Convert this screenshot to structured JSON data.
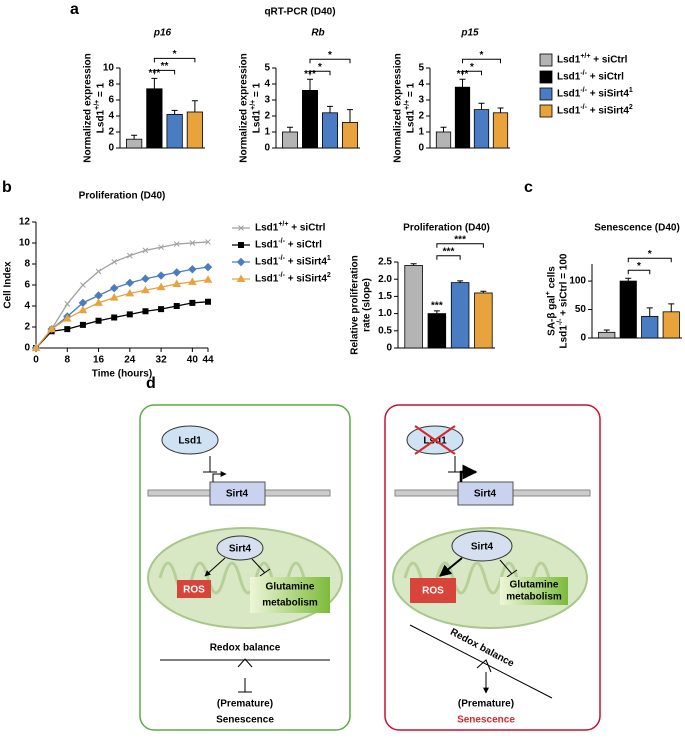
{
  "panel_labels": [
    "a",
    "b",
    "c",
    "d"
  ],
  "panel_a_title": "qRT-PCR (D40)",
  "chart_data": [
    {
      "type": "bar",
      "title": "p16",
      "title_italic": true,
      "ylabel": [
        "Normalized expression",
        "Lsd1+/+ = 1"
      ],
      "categories": [
        null,
        null,
        null,
        null
      ],
      "values": [
        1.1,
        7.4,
        4.2,
        4.5
      ],
      "errors": [
        0.5,
        1.3,
        0.5,
        1.4
      ],
      "colors": [
        "#b4b4b4",
        "#000000",
        "#4a7cc4",
        "#e8a33d"
      ],
      "legend": [
        "Lsd1+/+ + siCtrl",
        "Lsd1-/- + siCtrl",
        "Lsd1-/- + siSirt41",
        "Lsd1-/- + siSirt42"
      ],
      "ylim": [
        0,
        10
      ],
      "yticks": [
        0,
        2,
        4,
        6,
        8,
        10
      ],
      "annotations": [
        {
          "text": "***",
          "bars": [
            1
          ]
        },
        {
          "text": "**",
          "bars": [
            1,
            2
          ]
        },
        {
          "text": "*",
          "bars": [
            1,
            3
          ]
        }
      ]
    },
    {
      "type": "bar",
      "title": "Rb",
      "title_italic": true,
      "ylabel": [
        "Normalized expression",
        "Lsd1+/+ = 1"
      ],
      "categories": [
        null,
        null,
        null,
        null
      ],
      "values": [
        1.0,
        3.6,
        2.2,
        1.6
      ],
      "errors": [
        0.3,
        0.7,
        0.4,
        0.8
      ],
      "colors": [
        "#b4b4b4",
        "#000000",
        "#4a7cc4",
        "#e8a33d"
      ],
      "ylim": [
        0,
        5
      ],
      "yticks": [
        0,
        1,
        2,
        3,
        4,
        5
      ],
      "annotations": [
        {
          "text": "***",
          "bars": [
            1
          ]
        },
        {
          "text": "*",
          "bars": [
            1,
            2
          ]
        },
        {
          "text": "*",
          "bars": [
            1,
            3
          ]
        }
      ]
    },
    {
      "type": "bar",
      "title": "p15",
      "title_italic": true,
      "ylabel": [
        "Normalized expression",
        "Lsd1+/+ = 1"
      ],
      "categories": [
        null,
        null,
        null,
        null
      ],
      "values": [
        1.0,
        3.8,
        2.4,
        2.2
      ],
      "errors": [
        0.3,
        0.5,
        0.4,
        0.3
      ],
      "colors": [
        "#b4b4b4",
        "#000000",
        "#4a7cc4",
        "#e8a33d"
      ],
      "ylim": [
        0,
        5
      ],
      "yticks": [
        0,
        1,
        2,
        3,
        4,
        5
      ],
      "annotations": [
        {
          "text": "***",
          "bars": [
            1
          ]
        },
        {
          "text": "*",
          "bars": [
            1,
            2
          ]
        },
        {
          "text": "*",
          "bars": [
            1,
            3
          ]
        }
      ]
    },
    {
      "type": "line",
      "title": "Proliferation (D40)",
      "xlabel": "Time (hours)",
      "ylabel": "Cell Index",
      "x": [
        0,
        4,
        8,
        12,
        16,
        20,
        24,
        28,
        32,
        36,
        40,
        44
      ],
      "xlim": [
        0,
        44
      ],
      "xticks": [
        0,
        8,
        16,
        24,
        32,
        40,
        44
      ],
      "ylim": [
        0,
        12
      ],
      "yticks": [
        0,
        2,
        4,
        6,
        8,
        10,
        12
      ],
      "series": [
        {
          "name": "Lsd1+/+ + siCtrl",
          "color": "#a0a0a0",
          "marker": "x",
          "values": [
            0,
            1.8,
            4.2,
            6.0,
            7.3,
            8.2,
            8.8,
            9.3,
            9.6,
            9.9,
            10.0,
            10.1
          ]
        },
        {
          "name": "Lsd1-/- + siCtrl",
          "color": "#000000",
          "marker": "square",
          "values": [
            0,
            1.6,
            1.8,
            2.2,
            2.6,
            2.9,
            3.2,
            3.5,
            3.7,
            4.0,
            4.3,
            4.4
          ]
        },
        {
          "name": "Lsd1-/- + siSirt41",
          "color": "#4a7cc4",
          "marker": "diamond",
          "values": [
            0,
            1.8,
            3.0,
            4.3,
            5.0,
            5.7,
            6.2,
            6.6,
            6.9,
            7.2,
            7.5,
            7.7
          ]
        },
        {
          "name": "Lsd1-/- + siSirt42",
          "color": "#e8a33d",
          "marker": "triangle",
          "values": [
            0,
            1.8,
            2.8,
            3.6,
            4.3,
            4.8,
            5.2,
            5.5,
            5.8,
            6.1,
            6.3,
            6.5
          ]
        }
      ]
    },
    {
      "type": "bar",
      "title": "Proliferation (D40)",
      "title_italic": false,
      "ylabel": [
        "Relative proliferation",
        "rate (slope)"
      ],
      "categories": [
        null,
        null,
        null,
        null
      ],
      "values": [
        2.4,
        1.0,
        1.9,
        1.6
      ],
      "errors": [
        0.05,
        0.08,
        0.05,
        0.05
      ],
      "colors": [
        "#b4b4b4",
        "#000000",
        "#4a7cc4",
        "#e8a33d"
      ],
      "ylim": [
        0,
        2.5
      ],
      "yticks": [
        0,
        0.5,
        {
          "value": 1,
          "label": "1.0"
        },
        1.5,
        {
          "value": 2,
          "label": "2.0"
        },
        2.5
      ],
      "annotations": [
        {
          "text": "***",
          "bars": [
            1
          ]
        },
        {
          "text": "***",
          "bars": [
            1,
            2
          ]
        },
        {
          "text": "***",
          "bars": [
            1,
            3
          ]
        }
      ]
    },
    {
      "type": "bar",
      "title": "Senescence (D40)",
      "title_italic": false,
      "ylabel": [
        "SA-β gal+ cells",
        "Lsd1-/- + siCtrl = 100"
      ],
      "categories": [
        null,
        null,
        null,
        null
      ],
      "values": [
        10,
        100,
        38,
        46
      ],
      "errors": [
        4,
        5,
        15,
        14
      ],
      "colors": [
        "#b4b4b4",
        "#000000",
        "#4a7cc4",
        "#e8a33d"
      ],
      "ylim": [
        0,
        130
      ],
      "yticks": [
        0,
        50,
        100
      ],
      "annotations": [
        {
          "text": "*",
          "bars": [
            1,
            2
          ]
        },
        {
          "text": "*",
          "bars": [
            1,
            3
          ]
        }
      ]
    }
  ],
  "diagram": {
    "left": {
      "lsd1": "Lsd1",
      "gene": "Sirt4",
      "protein": "Sirt4",
      "ros": "ROS",
      "glutamine": [
        "Glutamine",
        "metabolism"
      ],
      "redox": "Redox balance",
      "outcome": [
        "(Premature)",
        "Senescence"
      ]
    },
    "right": {
      "lsd1": "Lsd1",
      "gene": "Sirt4",
      "protein": "Sirt4",
      "ros": "ROS",
      "glutamine": [
        "Glutamine",
        "metabolism"
      ],
      "redox": "Redox balance",
      "outcome": [
        "(Premature)",
        "Senescence"
      ]
    }
  }
}
